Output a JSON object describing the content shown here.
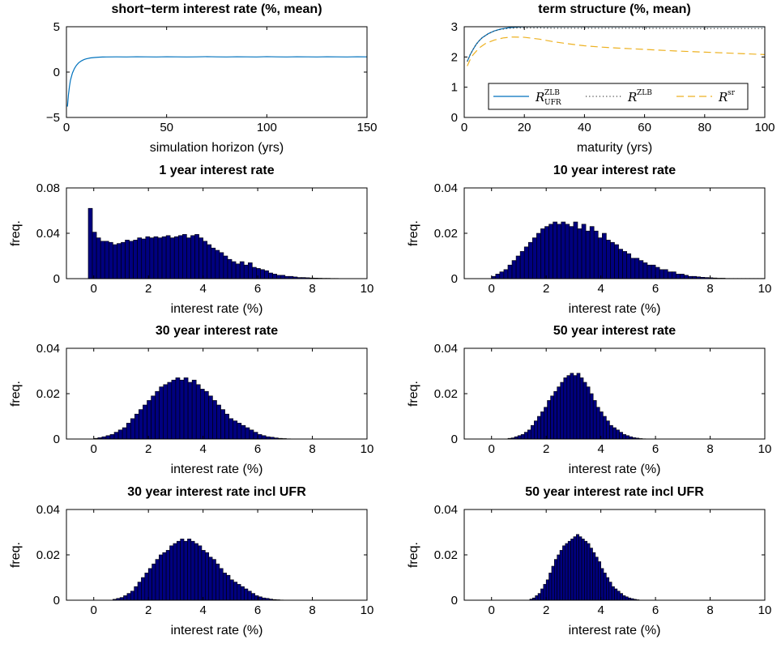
{
  "chart_data": [
    {
      "id": "short_rate",
      "type": "line",
      "title": "short−term interest rate (%, mean)",
      "xlabel": "simulation horizon (yrs)",
      "ylabel": "",
      "xlim": [
        0,
        150
      ],
      "ylim": [
        -5,
        5
      ],
      "xticks": [
        0,
        50,
        100,
        150
      ],
      "yticks": [
        -5,
        0,
        5
      ],
      "ytick_labels": [
        "−5",
        "0",
        "5"
      ],
      "grid": false,
      "series": [
        {
          "color": "#0072BD",
          "style": "solid",
          "x": [
            0.5,
            1,
            1.5,
            2,
            3,
            4,
            5,
            6,
            7,
            8,
            9,
            10,
            12,
            14,
            16,
            18,
            20,
            25,
            30,
            35,
            40,
            45,
            50,
            55,
            60,
            65,
            70,
            75,
            80,
            85,
            90,
            95,
            100,
            105,
            110,
            115,
            120,
            125,
            130,
            135,
            140,
            145,
            150
          ],
          "y": [
            -3.8,
            -2.5,
            -1.6,
            -0.9,
            -0.1,
            0.4,
            0.75,
            1.0,
            1.17,
            1.3,
            1.4,
            1.47,
            1.56,
            1.61,
            1.64,
            1.66,
            1.67,
            1.68,
            1.67,
            1.69,
            1.68,
            1.67,
            1.69,
            1.68,
            1.67,
            1.68,
            1.7,
            1.68,
            1.67,
            1.69,
            1.68,
            1.67,
            1.7,
            1.68,
            1.67,
            1.69,
            1.68,
            1.67,
            1.69,
            1.68,
            1.67,
            1.69,
            1.68
          ]
        }
      ]
    },
    {
      "id": "term_structure",
      "type": "line",
      "title": "term structure (%, mean)",
      "xlabel": "maturity (yrs)",
      "ylabel": "",
      "xlim": [
        0,
        100
      ],
      "ylim": [
        0,
        3
      ],
      "xticks": [
        0,
        20,
        40,
        60,
        80,
        100
      ],
      "yticks": [
        0,
        1,
        2,
        3
      ],
      "grid": false,
      "legend": "bottom-right",
      "series": [
        {
          "name": "R",
          "sub": "UFR",
          "sup": "ZLB",
          "color": "#0072BD",
          "style": "solid",
          "x": [
            1,
            2,
            3,
            4,
            5,
            6,
            8,
            10,
            12,
            15,
            18,
            20,
            25,
            30,
            40,
            50,
            60,
            70,
            80,
            90,
            100
          ],
          "y": [
            1.85,
            2.08,
            2.26,
            2.42,
            2.54,
            2.64,
            2.77,
            2.86,
            2.92,
            2.97,
            2.99,
            3.0,
            3.0,
            3.0,
            3.0,
            3.0,
            3.0,
            3.0,
            3.0,
            3.0,
            3.0
          ]
        },
        {
          "name": "R",
          "sub": "",
          "sup": "ZLB",
          "color": "#444444",
          "style": "dotted",
          "x": [
            1,
            2,
            3,
            4,
            5,
            6,
            8,
            10,
            12,
            15,
            18,
            20,
            25,
            30,
            40,
            50,
            60,
            70,
            80,
            90,
            100
          ],
          "y": [
            1.85,
            2.08,
            2.26,
            2.42,
            2.54,
            2.64,
            2.77,
            2.86,
            2.91,
            2.95,
            2.96,
            2.96,
            2.96,
            2.95,
            2.95,
            2.95,
            2.95,
            2.94,
            2.94,
            2.94,
            2.94
          ]
        },
        {
          "name": "R",
          "sub": "",
          "sup": "sr",
          "color": "#EDB120",
          "style": "dashed",
          "x": [
            1,
            2,
            3,
            5,
            7,
            10,
            13,
            16,
            20,
            25,
            30,
            35,
            40,
            45,
            50,
            60,
            70,
            80,
            90,
            100
          ],
          "y": [
            1.7,
            1.92,
            2.08,
            2.3,
            2.44,
            2.56,
            2.63,
            2.66,
            2.65,
            2.59,
            2.5,
            2.43,
            2.37,
            2.33,
            2.3,
            2.25,
            2.2,
            2.16,
            2.12,
            2.08
          ]
        }
      ]
    },
    {
      "id": "hist_1y",
      "type": "bar",
      "title": "1 year interest rate",
      "xlabel": "interest rate (%)",
      "ylabel": "freq.",
      "xlim": [
        -1,
        10
      ],
      "ylim": [
        0,
        0.08
      ],
      "xticks": [
        0,
        2,
        4,
        6,
        8,
        10
      ],
      "yticks": [
        0,
        0.04,
        0.08
      ],
      "ytick_labels": [
        "0",
        "0.04",
        "0.08"
      ],
      "bin_start": -0.2,
      "bin_width": 0.15,
      "values": [
        0.062,
        0.041,
        0.036,
        0.033,
        0.033,
        0.032,
        0.03,
        0.031,
        0.032,
        0.034,
        0.033,
        0.034,
        0.036,
        0.035,
        0.037,
        0.036,
        0.037,
        0.036,
        0.037,
        0.038,
        0.036,
        0.037,
        0.038,
        0.039,
        0.036,
        0.038,
        0.039,
        0.036,
        0.033,
        0.03,
        0.027,
        0.025,
        0.023,
        0.02,
        0.017,
        0.015,
        0.013,
        0.015,
        0.012,
        0.014,
        0.01,
        0.009,
        0.008,
        0.007,
        0.005,
        0.004,
        0.003,
        0.003,
        0.002,
        0.002,
        0.0015,
        0.001,
        0.001,
        0.0008,
        0.0006,
        0.0005,
        0.0004,
        0.0003,
        0.0003,
        0.0002,
        0.0002,
        0.0001,
        0.0001,
        0.0001,
        0.0001,
        0.0001,
        0.0001,
        0.0001,
        0.0001,
        0.0001
      ]
    },
    {
      "id": "hist_10y",
      "type": "bar",
      "title": "10 year interest rate",
      "xlabel": "interest rate (%)",
      "ylabel": "freq.",
      "xlim": [
        -1,
        10
      ],
      "ylim": [
        0,
        0.04
      ],
      "xticks": [
        0,
        2,
        4,
        6,
        8,
        10
      ],
      "yticks": [
        0,
        0.02,
        0.04
      ],
      "ytick_labels": [
        "0",
        "0.02",
        "0.04"
      ],
      "bin_start": 0.0,
      "bin_width": 0.15,
      "values": [
        0.001,
        0.002,
        0.003,
        0.004,
        0.006,
        0.008,
        0.01,
        0.012,
        0.014,
        0.016,
        0.018,
        0.02,
        0.022,
        0.023,
        0.024,
        0.025,
        0.024,
        0.025,
        0.024,
        0.023,
        0.025,
        0.022,
        0.024,
        0.021,
        0.023,
        0.021,
        0.018,
        0.02,
        0.017,
        0.016,
        0.015,
        0.013,
        0.012,
        0.011,
        0.009,
        0.009,
        0.008,
        0.007,
        0.006,
        0.006,
        0.005,
        0.004,
        0.004,
        0.003,
        0.003,
        0.002,
        0.002,
        0.0015,
        0.001,
        0.001,
        0.0008,
        0.0006,
        0.0005,
        0.0004,
        0.0003,
        0.0002,
        0.0002,
        0.0001,
        0.0001,
        0.0001,
        0.0001,
        0.0001,
        0.0001,
        0.0001,
        0.0001,
        0.0001,
        0.0001
      ]
    },
    {
      "id": "hist_30y",
      "type": "bar",
      "title": "30 year interest rate",
      "xlabel": "interest rate (%)",
      "ylabel": "freq.",
      "xlim": [
        -1,
        10
      ],
      "ylim": [
        0,
        0.04
      ],
      "xticks": [
        0,
        2,
        4,
        6,
        8,
        10
      ],
      "yticks": [
        0,
        0.02,
        0.04
      ],
      "ytick_labels": [
        "0",
        "0.02",
        "0.04"
      ],
      "bin_start": 0.0,
      "bin_width": 0.15,
      "values": [
        0.0003,
        0.0006,
        0.001,
        0.0015,
        0.002,
        0.003,
        0.004,
        0.005,
        0.007,
        0.009,
        0.011,
        0.013,
        0.015,
        0.017,
        0.019,
        0.021,
        0.023,
        0.024,
        0.025,
        0.026,
        0.027,
        0.026,
        0.027,
        0.025,
        0.026,
        0.024,
        0.022,
        0.021,
        0.019,
        0.017,
        0.015,
        0.013,
        0.011,
        0.009,
        0.008,
        0.007,
        0.006,
        0.005,
        0.004,
        0.003,
        0.002,
        0.0015,
        0.001,
        0.0008,
        0.0005,
        0.0003,
        0.0002,
        0.0001
      ]
    },
    {
      "id": "hist_50y",
      "type": "bar",
      "title": "50 year interest rate",
      "xlabel": "interest rate (%)",
      "ylabel": "freq.",
      "xlim": [
        -1,
        10
      ],
      "ylim": [
        0,
        0.04
      ],
      "xticks": [
        0,
        2,
        4,
        6,
        8,
        10
      ],
      "yticks": [
        0,
        0.02,
        0.04
      ],
      "ytick_labels": [
        "0",
        "0.02",
        "0.04"
      ],
      "bin_start": 0.6,
      "bin_width": 0.12,
      "values": [
        0.0003,
        0.0005,
        0.001,
        0.0015,
        0.002,
        0.003,
        0.004,
        0.006,
        0.008,
        0.01,
        0.012,
        0.014,
        0.017,
        0.019,
        0.021,
        0.023,
        0.025,
        0.027,
        0.028,
        0.029,
        0.028,
        0.029,
        0.027,
        0.025,
        0.023,
        0.02,
        0.017,
        0.014,
        0.012,
        0.01,
        0.008,
        0.006,
        0.005,
        0.004,
        0.003,
        0.002,
        0.0015,
        0.001,
        0.0006,
        0.0004,
        0.0002,
        0.0001
      ]
    },
    {
      "id": "hist_30y_ufr",
      "type": "bar",
      "title": "30 year interest rate incl UFR",
      "xlabel": "interest rate (%)",
      "ylabel": "freq.",
      "xlim": [
        -1,
        10
      ],
      "ylim": [
        0,
        0.04
      ],
      "xticks": [
        0,
        2,
        4,
        6,
        8,
        10
      ],
      "yticks": [
        0,
        0.02,
        0.04
      ],
      "ytick_labels": [
        "0",
        "0.02",
        "0.04"
      ],
      "bin_start": 0.7,
      "bin_width": 0.13,
      "values": [
        0.0004,
        0.0008,
        0.0012,
        0.002,
        0.003,
        0.004,
        0.006,
        0.008,
        0.01,
        0.012,
        0.014,
        0.016,
        0.018,
        0.02,
        0.021,
        0.022,
        0.024,
        0.025,
        0.026,
        0.027,
        0.026,
        0.027,
        0.026,
        0.025,
        0.024,
        0.022,
        0.021,
        0.019,
        0.018,
        0.016,
        0.014,
        0.012,
        0.011,
        0.009,
        0.008,
        0.007,
        0.006,
        0.005,
        0.004,
        0.003,
        0.002,
        0.0015,
        0.001,
        0.0008,
        0.0005,
        0.0003,
        0.0002,
        0.0001
      ]
    },
    {
      "id": "hist_50y_ufr",
      "type": "bar",
      "title": "50 year interest rate incl UFR",
      "xlabel": "interest rate (%)",
      "ylabel": "freq.",
      "xlim": [
        -1,
        10
      ],
      "ylim": [
        0,
        0.04
      ],
      "xticks": [
        0,
        2,
        4,
        6,
        8,
        10
      ],
      "yticks": [
        0,
        0.02,
        0.04
      ],
      "ytick_labels": [
        "0",
        "0.02",
        "0.04"
      ],
      "bin_start": 1.4,
      "bin_width": 0.1,
      "values": [
        0.0005,
        0.001,
        0.002,
        0.003,
        0.005,
        0.007,
        0.009,
        0.012,
        0.015,
        0.018,
        0.02,
        0.022,
        0.024,
        0.025,
        0.026,
        0.027,
        0.028,
        0.029,
        0.028,
        0.027,
        0.026,
        0.025,
        0.023,
        0.021,
        0.019,
        0.017,
        0.014,
        0.012,
        0.01,
        0.008,
        0.006,
        0.005,
        0.004,
        0.003,
        0.002,
        0.0015,
        0.001,
        0.0007,
        0.0004,
        0.0002
      ]
    }
  ],
  "colors": {
    "bar_fill": "#00007F",
    "bar_edge": "#000000",
    "axes": "#000000"
  }
}
